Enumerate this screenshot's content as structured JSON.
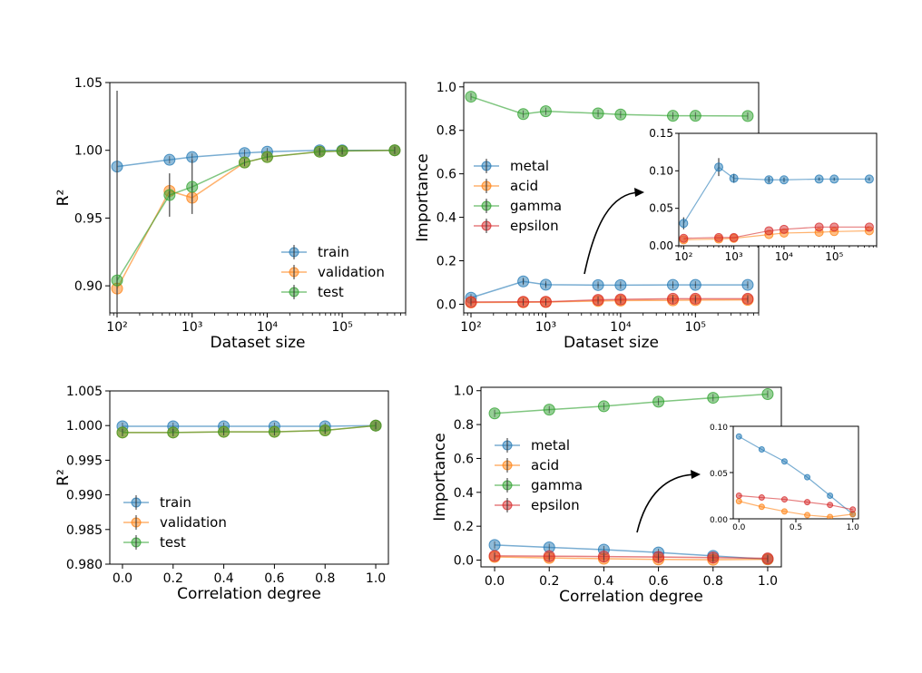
{
  "colors": {
    "train": "#1f77b4",
    "validation": "#ff7f0e",
    "test": "#2ca02c",
    "metal": "#1f77b4",
    "acid": "#ff7f0e",
    "gamma": "#2ca02c",
    "epsilon": "#d62728",
    "errorbar": "#333333"
  },
  "chart_data": [
    {
      "id": "r2-vs-size",
      "type": "line",
      "xlabel": "Dataset size",
      "ylabel": "R²",
      "xscale": "log",
      "xlim": [
        80,
        700000
      ],
      "ylim": [
        0.88,
        1.05
      ],
      "yticks": [
        0.9,
        0.95,
        1.0,
        1.05
      ],
      "ytick_labels": [
        "0.90",
        "0.95",
        "1.00",
        "1.05"
      ],
      "xticks": [
        100,
        1000,
        10000,
        100000
      ],
      "xtick_labels": [
        "10²",
        "10³",
        "10⁴",
        "10⁵"
      ],
      "legend": "lower-right",
      "x": [
        100,
        500,
        1000,
        5000,
        10000,
        50000,
        100000,
        500000
      ],
      "series": [
        {
          "name": "train",
          "values": [
            0.988,
            0.993,
            0.995,
            0.998,
            0.999,
            1.0,
            1.0,
            1.0
          ],
          "err": [
            0,
            0,
            0,
            0,
            0,
            0,
            0,
            0
          ]
        },
        {
          "name": "validation",
          "values": [
            0.898,
            0.97,
            0.965,
            0.991,
            0.995,
            0.999,
            0.9995,
            1.0
          ],
          "err": [
            0,
            0,
            0,
            0,
            0,
            0,
            0,
            0
          ]
        },
        {
          "name": "test",
          "values": [
            0.904,
            0.967,
            0.973,
            0.991,
            0.995,
            0.999,
            0.9995,
            1.0
          ],
          "err": [
            0.14,
            0.016,
            0.02,
            0,
            0,
            0,
            0,
            0
          ]
        }
      ]
    },
    {
      "id": "importance-vs-size",
      "type": "line",
      "xlabel": "Dataset size",
      "ylabel": "Importance",
      "xscale": "log",
      "xlim": [
        80,
        700000
      ],
      "ylim": [
        -0.04,
        1.02
      ],
      "yticks": [
        0.0,
        0.2,
        0.4,
        0.6,
        0.8,
        1.0
      ],
      "ytick_labels": [
        "0.0",
        "0.2",
        "0.4",
        "0.6",
        "0.8",
        "1.0"
      ],
      "xticks": [
        100,
        1000,
        10000,
        100000
      ],
      "xtick_labels": [
        "10²",
        "10³",
        "10⁴",
        "10⁵"
      ],
      "legend": "center-left",
      "x": [
        100,
        500,
        1000,
        5000,
        10000,
        50000,
        100000,
        500000
      ],
      "series": [
        {
          "name": "metal",
          "values": [
            0.03,
            0.105,
            0.09,
            0.088,
            0.088,
            0.089,
            0.089,
            0.089
          ],
          "err": [
            0.008,
            0.012,
            0.008,
            0.005,
            0.004,
            0.003,
            0.003,
            0.002
          ]
        },
        {
          "name": "acid",
          "values": [
            0.008,
            0.009,
            0.01,
            0.015,
            0.017,
            0.018,
            0.019,
            0.02
          ],
          "err": [
            0,
            0,
            0,
            0,
            0,
            0,
            0,
            0
          ]
        },
        {
          "name": "gamma",
          "values": [
            0.955,
            0.875,
            0.888,
            0.878,
            0.873,
            0.867,
            0.867,
            0.866
          ],
          "err": [
            0,
            0,
            0,
            0,
            0,
            0,
            0,
            0
          ]
        },
        {
          "name": "epsilon",
          "values": [
            0.01,
            0.011,
            0.011,
            0.02,
            0.022,
            0.025,
            0.025,
            0.025
          ],
          "err": [
            0,
            0,
            0,
            0,
            0,
            0,
            0,
            0
          ]
        }
      ],
      "inset": {
        "ylim": [
          0.0,
          0.15
        ],
        "yticks": [
          0.0,
          0.05,
          0.1,
          0.15
        ],
        "ytick_labels": [
          "0.00",
          "0.05",
          "0.10",
          "0.15"
        ],
        "xtick_labels": [
          "10²",
          "10³",
          "10⁴",
          "10⁵"
        ]
      }
    },
    {
      "id": "r2-vs-correlation",
      "type": "line",
      "xlabel": "Correlation degree",
      "ylabel": "R²",
      "xlim": [
        -0.05,
        1.05
      ],
      "ylim": [
        0.98,
        1.005
      ],
      "yticks": [
        0.98,
        0.985,
        0.99,
        0.995,
        1.0,
        1.005
      ],
      "ytick_labels": [
        "0.980",
        "0.985",
        "0.990",
        "0.995",
        "1.000",
        "1.005"
      ],
      "xticks": [
        0.0,
        0.2,
        0.4,
        0.6,
        0.8,
        1.0
      ],
      "xtick_labels": [
        "0.0",
        "0.2",
        "0.4",
        "0.6",
        "0.8",
        "1.0"
      ],
      "legend": "lower-left",
      "x": [
        0.0,
        0.2,
        0.4,
        0.6,
        0.8,
        1.0
      ],
      "series": [
        {
          "name": "train",
          "values": [
            0.9999,
            0.9999,
            0.9999,
            0.9999,
            0.9999,
            1.0
          ],
          "err": [
            0,
            0,
            0,
            0,
            0,
            0
          ]
        },
        {
          "name": "validation",
          "values": [
            0.999,
            0.999,
            0.9991,
            0.9991,
            0.9993,
            1.0
          ],
          "err": [
            0,
            0,
            0,
            0,
            0,
            0
          ]
        },
        {
          "name": "test",
          "values": [
            0.999,
            0.999,
            0.9991,
            0.9991,
            0.9993,
            1.0
          ],
          "err": [
            0,
            0,
            0,
            0,
            0,
            0
          ]
        }
      ]
    },
    {
      "id": "importance-vs-correlation",
      "type": "line",
      "xlabel": "Correlation degree",
      "ylabel": "Importance",
      "xlim": [
        -0.05,
        1.05
      ],
      "ylim": [
        -0.04,
        1.02
      ],
      "yticks": [
        0.0,
        0.2,
        0.4,
        0.6,
        0.8,
        1.0
      ],
      "ytick_labels": [
        "0.0",
        "0.2",
        "0.4",
        "0.6",
        "0.8",
        "1.0"
      ],
      "xticks": [
        0.0,
        0.2,
        0.4,
        0.6,
        0.8,
        1.0
      ],
      "xtick_labels": [
        "0.0",
        "0.2",
        "0.4",
        "0.6",
        "0.8",
        "1.0"
      ],
      "legend": "center-left",
      "x": [
        0.0,
        0.2,
        0.4,
        0.6,
        0.8,
        1.0
      ],
      "series": [
        {
          "name": "metal",
          "values": [
            0.089,
            0.075,
            0.062,
            0.045,
            0.025,
            0.005
          ],
          "err": [
            0,
            0,
            0,
            0,
            0,
            0
          ]
        },
        {
          "name": "acid",
          "values": [
            0.019,
            0.013,
            0.008,
            0.004,
            0.002,
            0.005
          ],
          "err": [
            0,
            0,
            0,
            0,
            0,
            0
          ]
        },
        {
          "name": "gamma",
          "values": [
            0.866,
            0.888,
            0.908,
            0.935,
            0.958,
            0.98
          ],
          "err": [
            0,
            0,
            0,
            0,
            0,
            0
          ]
        },
        {
          "name": "epsilon",
          "values": [
            0.025,
            0.023,
            0.021,
            0.018,
            0.015,
            0.01
          ],
          "err": [
            0,
            0,
            0,
            0,
            0,
            0
          ]
        }
      ],
      "inset": {
        "ylim": [
          0.0,
          0.1
        ],
        "yticks": [
          0.0,
          0.05,
          0.1
        ],
        "ytick_labels": [
          "0.00",
          "0.05",
          "0.10"
        ],
        "xtick_labels": [
          "0.0",
          "0.5",
          "1.0"
        ],
        "xticks": [
          0.0,
          0.5,
          1.0
        ]
      }
    }
  ]
}
